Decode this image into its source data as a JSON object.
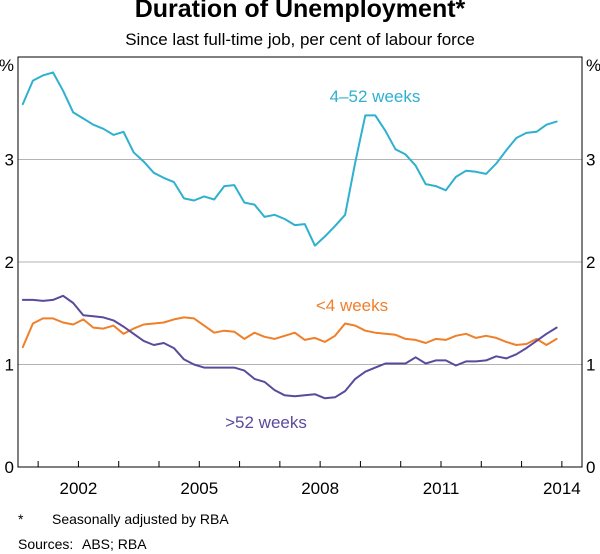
{
  "chart_data": {
    "type": "line",
    "title": "Duration of Unemployment*",
    "subtitle": "Since last full-time job, per cent of labour force",
    "ylabel_left": "%",
    "ylabel_right": "%",
    "ylim": [
      0,
      4
    ],
    "yticks": [
      0,
      1,
      2,
      3
    ],
    "xlim": [
      2000.5,
      2014.5
    ],
    "xticks": [
      2002,
      2005,
      2008,
      2011,
      2014
    ],
    "xtick_labels": [
      "2002",
      "2005",
      "2008",
      "2011",
      "2014"
    ],
    "grid": true,
    "series": [
      {
        "name": "4–52 weeks",
        "color": "#2fb0cf",
        "x": [
          2000.62,
          2000.87,
          2001.12,
          2001.37,
          2001.62,
          2001.87,
          2002.12,
          2002.37,
          2002.62,
          2002.87,
          2003.12,
          2003.37,
          2003.62,
          2003.87,
          2004.12,
          2004.37,
          2004.62,
          2004.87,
          2005.12,
          2005.37,
          2005.62,
          2005.87,
          2006.12,
          2006.37,
          2006.62,
          2006.87,
          2007.12,
          2007.37,
          2007.62,
          2007.87,
          2008.12,
          2008.37,
          2008.62,
          2008.87,
          2009.12,
          2009.37,
          2009.62,
          2009.87,
          2010.12,
          2010.37,
          2010.62,
          2010.87,
          2011.12,
          2011.37,
          2011.62,
          2011.87,
          2012.12,
          2012.37,
          2012.62,
          2012.87,
          2013.12,
          2013.37,
          2013.62,
          2013.87
        ],
        "values": [
          3.54,
          3.77,
          3.82,
          3.85,
          3.67,
          3.46,
          3.4,
          3.34,
          3.3,
          3.24,
          3.27,
          3.07,
          2.98,
          2.87,
          2.82,
          2.78,
          2.62,
          2.6,
          2.64,
          2.61,
          2.74,
          2.75,
          2.58,
          2.56,
          2.44,
          2.46,
          2.42,
          2.36,
          2.37,
          2.16,
          2.25,
          2.35,
          2.46,
          2.97,
          3.43,
          3.43,
          3.28,
          3.1,
          3.05,
          2.94,
          2.76,
          2.74,
          2.7,
          2.83,
          2.89,
          2.88,
          2.86,
          2.96,
          3.09,
          3.21,
          3.26,
          3.27,
          3.34,
          3.37
        ]
      },
      {
        "name": "<4 weeks",
        "color": "#f07f2a",
        "x": [
          2000.62,
          2000.87,
          2001.12,
          2001.37,
          2001.62,
          2001.87,
          2002.12,
          2002.37,
          2002.62,
          2002.87,
          2003.12,
          2003.37,
          2003.62,
          2003.87,
          2004.12,
          2004.37,
          2004.62,
          2004.87,
          2005.12,
          2005.37,
          2005.62,
          2005.87,
          2006.12,
          2006.37,
          2006.62,
          2006.87,
          2007.12,
          2007.37,
          2007.62,
          2007.87,
          2008.12,
          2008.37,
          2008.62,
          2008.87,
          2009.12,
          2009.37,
          2009.62,
          2009.87,
          2010.12,
          2010.37,
          2010.62,
          2010.87,
          2011.12,
          2011.37,
          2011.62,
          2011.87,
          2012.12,
          2012.37,
          2012.62,
          2012.87,
          2013.12,
          2013.37,
          2013.62,
          2013.87
        ],
        "values": [
          1.17,
          1.4,
          1.45,
          1.45,
          1.41,
          1.39,
          1.44,
          1.36,
          1.35,
          1.38,
          1.3,
          1.35,
          1.39,
          1.4,
          1.41,
          1.44,
          1.46,
          1.45,
          1.38,
          1.31,
          1.33,
          1.32,
          1.25,
          1.31,
          1.27,
          1.25,
          1.28,
          1.31,
          1.24,
          1.26,
          1.22,
          1.28,
          1.4,
          1.38,
          1.33,
          1.31,
          1.3,
          1.29,
          1.25,
          1.24,
          1.21,
          1.25,
          1.24,
          1.28,
          1.3,
          1.26,
          1.28,
          1.26,
          1.22,
          1.19,
          1.2,
          1.25,
          1.19,
          1.25
        ]
      },
      {
        "name": ">52 weeks",
        "color": "#5b4a9c",
        "x": [
          2000.62,
          2000.87,
          2001.12,
          2001.37,
          2001.62,
          2001.87,
          2002.12,
          2002.37,
          2002.62,
          2002.87,
          2003.12,
          2003.37,
          2003.62,
          2003.87,
          2004.12,
          2004.37,
          2004.62,
          2004.87,
          2005.12,
          2005.37,
          2005.62,
          2005.87,
          2006.12,
          2006.37,
          2006.62,
          2006.87,
          2007.12,
          2007.37,
          2007.62,
          2007.87,
          2008.12,
          2008.37,
          2008.62,
          2008.87,
          2009.12,
          2009.37,
          2009.62,
          2009.87,
          2010.12,
          2010.37,
          2010.62,
          2010.87,
          2011.12,
          2011.37,
          2011.62,
          2011.87,
          2012.12,
          2012.37,
          2012.62,
          2012.87,
          2013.12,
          2013.37,
          2013.62,
          2013.87
        ],
        "values": [
          1.63,
          1.63,
          1.62,
          1.63,
          1.67,
          1.6,
          1.48,
          1.47,
          1.46,
          1.43,
          1.37,
          1.3,
          1.23,
          1.19,
          1.21,
          1.16,
          1.05,
          1.0,
          0.97,
          0.97,
          0.97,
          0.97,
          0.94,
          0.86,
          0.83,
          0.75,
          0.7,
          0.69,
          0.7,
          0.71,
          0.67,
          0.68,
          0.74,
          0.86,
          0.93,
          0.97,
          1.01,
          1.01,
          1.01,
          1.07,
          1.01,
          1.04,
          1.04,
          0.99,
          1.03,
          1.03,
          1.04,
          1.08,
          1.06,
          1.1,
          1.16,
          1.23,
          1.3,
          1.36
        ]
      }
    ],
    "annotations": [
      {
        "text": "4–52 weeks",
        "series": 0
      },
      {
        "text": "<4 weeks",
        "series": 1
      },
      {
        "text": ">52 weeks",
        "series": 2
      }
    ]
  },
  "footnote": {
    "marker": "*",
    "text": "Seasonally adjusted by RBA"
  },
  "sources": {
    "label": "Sources:",
    "text": "ABS; RBA"
  }
}
